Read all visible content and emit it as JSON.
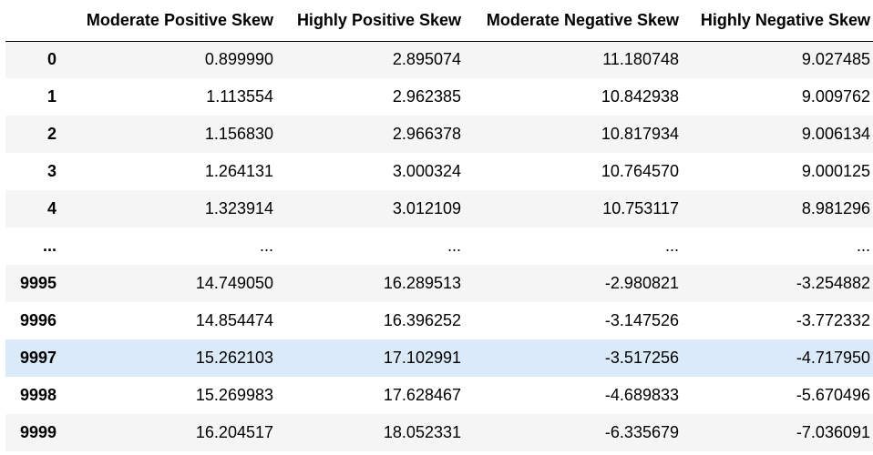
{
  "table": {
    "index_header": "",
    "columns": [
      "Moderate Positive Skew",
      "Highly Positive Skew",
      "Moderate Negative Skew",
      "Highly Negative Skew"
    ],
    "rows": [
      {
        "index": "0",
        "values": [
          "0.899990",
          "2.895074",
          "11.180748",
          "9.027485"
        ]
      },
      {
        "index": "1",
        "values": [
          "1.113554",
          "2.962385",
          "10.842938",
          "9.009762"
        ]
      },
      {
        "index": "2",
        "values": [
          "1.156830",
          "2.966378",
          "10.817934",
          "9.006134"
        ]
      },
      {
        "index": "3",
        "values": [
          "1.264131",
          "3.000324",
          "10.764570",
          "9.000125"
        ]
      },
      {
        "index": "4",
        "values": [
          "1.323914",
          "3.012109",
          "10.753117",
          "8.981296"
        ]
      },
      {
        "index": "...",
        "values": [
          "...",
          "...",
          "...",
          "..."
        ]
      },
      {
        "index": "9995",
        "values": [
          "14.749050",
          "16.289513",
          "-2.980821",
          "-3.254882"
        ]
      },
      {
        "index": "9996",
        "values": [
          "14.854474",
          "16.396252",
          "-3.147526",
          "-3.772332"
        ]
      },
      {
        "index": "9997",
        "values": [
          "15.262103",
          "17.102991",
          "-3.517256",
          "-4.717950"
        ],
        "hovered": true
      },
      {
        "index": "9998",
        "values": [
          "15.269983",
          "17.628467",
          "-4.689833",
          "-5.670496"
        ]
      },
      {
        "index": "9999",
        "values": [
          "16.204517",
          "18.052331",
          "-6.335679",
          "-7.036091"
        ]
      }
    ]
  },
  "colors": {
    "stripe": "#f5f5f5",
    "hover": "#dbeaf8",
    "header_rule": "#000000"
  }
}
